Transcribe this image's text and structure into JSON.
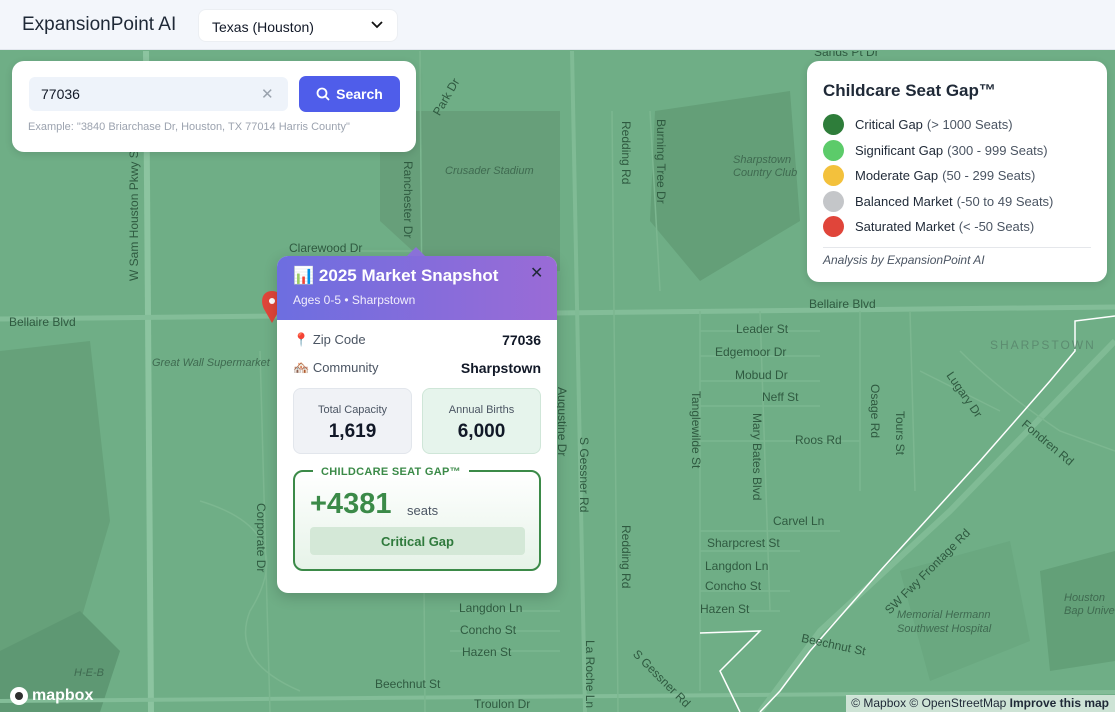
{
  "header": {
    "app_title": "ExpansionPoint AI",
    "region_selected": "Texas (Houston)"
  },
  "search": {
    "value": "77036",
    "button_label": "Search",
    "hint": "Example: \"3840 Briarchase Dr, Houston, TX 77014 Harris County\""
  },
  "legend": {
    "title": "Childcare Seat Gap™",
    "items": [
      {
        "label": "Critical Gap",
        "range": "(> 1000 Seats)",
        "color": "#2e7d3a"
      },
      {
        "label": "Significant Gap",
        "range": "(300 - 999 Seats)",
        "color": "#5ccb6a"
      },
      {
        "label": "Moderate Gap",
        "range": "(50 - 299 Seats)",
        "color": "#f3c13c"
      },
      {
        "label": "Balanced Market",
        "range": "(-50 to 49 Seats)",
        "color": "#c4c6c9"
      },
      {
        "label": "Saturated Market",
        "range": "(< -50 Seats)",
        "color": "#e0453a"
      }
    ],
    "credit": "Analysis by ExpansionPoint AI"
  },
  "popup": {
    "icon": "📊",
    "title": "2025 Market Snapshot",
    "subtitle": "Ages 0-5 • Sharpstown",
    "zip_label": "Zip Code",
    "zip_icon": "📍",
    "zip_value": "77036",
    "community_label": "Community",
    "community_icon": "🏘️",
    "community_value": "Sharpstown",
    "capacity_label": "Total Capacity",
    "capacity_value": "1,619",
    "births_label": "Annual Births",
    "births_value": "6,000",
    "gap_tag": "CHILDCARE SEAT GAP™",
    "gap_value": "+4381",
    "gap_unit": "seats",
    "gap_status": "Critical Gap"
  },
  "map_labels": {
    "sands_pt": "Sands Pt Dr",
    "park_dr": "Park Dr",
    "crusader": "Crusader Stadium",
    "redding_top": "Redding Rd",
    "burning_tree": "Burning Tree Dr",
    "country_club": "Sharpstown Country Club",
    "w_sam": "W Sam Houston Pkwy S",
    "ranchester": "Ranchester Dr",
    "clarewood": "Clarewood Dr",
    "bellaire_left": "Bellaire Blvd",
    "bellaire_right": "Bellaire Blvd",
    "great_wall": "Great Wall Supermarket",
    "leader": "Leader St",
    "edgemoor": "Edgemoor Dr",
    "mobud": "Mobud Dr",
    "neff": "Neff St",
    "roos": "Roos Rd",
    "osage": "Osage Rd",
    "tours": "Tours St",
    "lugary": "Lugary Dr",
    "fondren": "Fondren Rd",
    "sharpstown": "SHARPSTOWN",
    "augustine": "Augustine Dr",
    "s_gessner": "S Gessner Rd",
    "tanglewilde": "Tanglewilde St",
    "mary_bates": "Mary Bates Blvd",
    "carvel": "Carvel Ln",
    "sharpcrest": "Sharpcrest St",
    "langdon_right": "Langdon Ln",
    "concho_right": "Concho St",
    "hazen_right": "Hazen St",
    "swfwy": "SW Fwy Frontage Rd",
    "memorial": "Memorial Hermann Southwest Hospital",
    "houston_bap": "Houston Bap Univers",
    "beechnut_right": "Beechnut St",
    "corporate": "Corporate Dr",
    "redding_bottom": "Redding Rd",
    "langdon_left": "Langdon Ln",
    "concho_left": "Concho St",
    "hazen_left": "Hazen St",
    "la_roche": "La Roche Ln",
    "s_gessner_bottom": "S Gessner Rd",
    "heb": "H-E-B",
    "beechnut_left": "Beechnut St",
    "troulon": "Troulon Dr"
  },
  "footer": {
    "mapbox": "mapbox",
    "attribution": "© Mapbox © OpenStreetMap",
    "improve": "Improve this map"
  }
}
